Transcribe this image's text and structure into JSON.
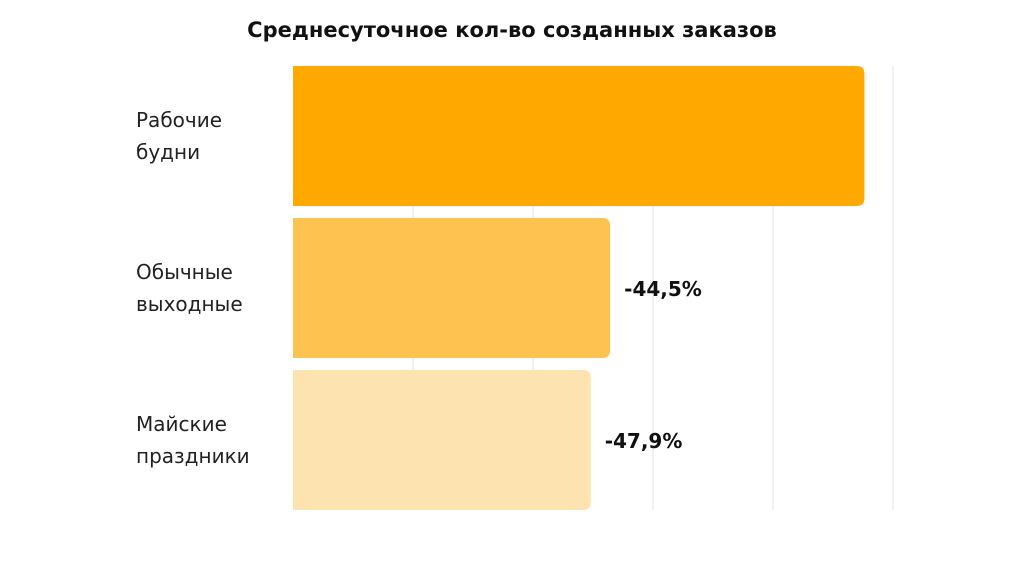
{
  "chart_data": {
    "type": "bar",
    "orientation": "horizontal",
    "title": "Среднесуточное кол-во созданных заказов",
    "categories": [
      "Рабочие будни",
      "Обычные выходные",
      "Майские праздники"
    ],
    "category_lines": [
      [
        "Рабочие",
        "будни"
      ],
      [
        "Обычные",
        "выходные"
      ],
      [
        "Майские",
        "праздники"
      ]
    ],
    "values": [
      100,
      55.5,
      52.1
    ],
    "data_labels": [
      "",
      "-44,5%",
      "-47,9%"
    ],
    "colors": [
      "#FFA800",
      "#FDC24F",
      "#FDE3B0"
    ],
    "xlim": [
      0,
      105
    ],
    "grid": true,
    "legend": "none"
  }
}
